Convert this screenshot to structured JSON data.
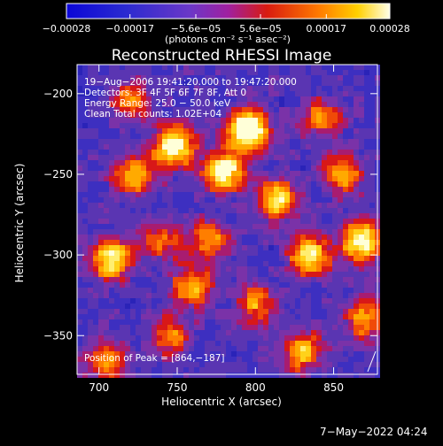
{
  "chart_data": {
    "type": "heatmap",
    "title": "Reconstructed RHESSI Image",
    "xlabel": "Heliocentric X (arcsec)",
    "ylabel": "Heliocentric Y (arcsec)",
    "xlim": [
      686,
      878
    ],
    "ylim": [
      -374,
      -182
    ],
    "xticks": [
      700,
      750,
      800,
      850
    ],
    "yticks": [
      -200,
      -250,
      -300,
      -350
    ],
    "xtick_labels": [
      "700",
      "750",
      "800",
      "850"
    ],
    "ytick_labels": [
      "−200",
      "−250",
      "−300",
      "−350"
    ],
    "colorbar": {
      "ticks": [
        -0.00028,
        -0.00017,
        -5.6e-05,
        5.6e-05,
        0.00017,
        0.00028
      ],
      "tick_labels": [
        "−0.00028",
        "−0.00017",
        "−5.6e−05",
        "5.6e−05",
        "0.00017",
        "0.00028"
      ],
      "range": [
        -0.00028,
        0.00028
      ],
      "units_text": "(photons cm⁻² s⁻¹ asec⁻²)"
    },
    "info_lines": [
      "19−Aug−2006 19:41:20.000 to 19:47:20.000",
      "Detectors: 3F 4F 5F 6F 7F 8F, Att 0",
      "Energy Range: 25.0 − 50.0 keV",
      "Clean    Total counts: 1.02E+04"
    ],
    "peak_label": "Position of Peak = [864,−187]",
    "peak": {
      "x": 864,
      "y": -187
    },
    "hot_regions": [
      {
        "x": 795,
        "y": -222,
        "level": 1.0
      },
      {
        "x": 748,
        "y": -233,
        "level": 0.85
      },
      {
        "x": 780,
        "y": -248,
        "level": 0.8
      },
      {
        "x": 868,
        "y": -292,
        "level": 0.85
      },
      {
        "x": 708,
        "y": -303,
        "level": 0.75
      },
      {
        "x": 814,
        "y": -266,
        "level": 0.7
      },
      {
        "x": 722,
        "y": -250,
        "level": 0.6
      },
      {
        "x": 835,
        "y": -300,
        "level": 0.7
      },
      {
        "x": 760,
        "y": -320,
        "level": 0.6
      },
      {
        "x": 830,
        "y": -360,
        "level": 0.6
      },
      {
        "x": 705,
        "y": -365,
        "level": 0.5
      },
      {
        "x": 855,
        "y": -250,
        "level": 0.55
      },
      {
        "x": 770,
        "y": -290,
        "level": 0.5
      },
      {
        "x": 740,
        "y": -290,
        "level": 0.45
      },
      {
        "x": 745,
        "y": -350,
        "level": 0.5
      },
      {
        "x": 800,
        "y": -330,
        "level": 0.5
      },
      {
        "x": 870,
        "y": -340,
        "level": 0.55
      },
      {
        "x": 720,
        "y": -205,
        "level": 0.45
      },
      {
        "x": 843,
        "y": -215,
        "level": 0.45
      }
    ],
    "grid": false
  },
  "footer": {
    "date": "7−May−2022 04:24"
  }
}
